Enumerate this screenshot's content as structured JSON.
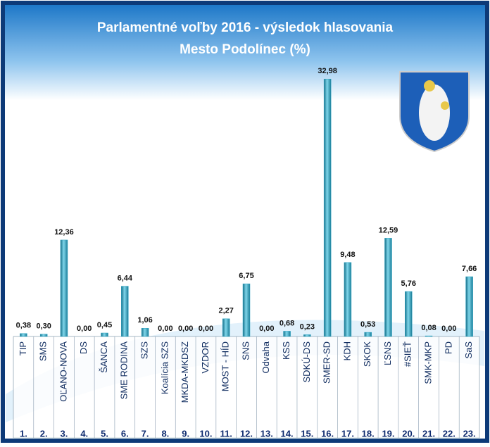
{
  "chart_data": {
    "type": "bar",
    "title": "Parlamentné voľby 2016 - výsledok hlasovania",
    "subtitle": "Mesto Podolínec (%)",
    "categories": [
      "TIP",
      "SMS",
      "OĽANO-NOVA",
      "DS",
      "ŠANCA",
      "SME RODINA",
      "SZS",
      "Koalícia SZS",
      "MKDA-MKDSZ",
      "VZDOR",
      "MOST - HÍD",
      "SNS",
      "Odvaha",
      "KSS",
      "SDKÚ-DS",
      "SMER-SD",
      "KDH",
      "SKOK",
      "ĽSNS",
      "#SIEŤ",
      "SMK-MKP",
      "PD",
      "SaS"
    ],
    "numbers": [
      "1.",
      "2.",
      "3.",
      "4.",
      "5.",
      "6.",
      "7.",
      "8.",
      "9.",
      "10.",
      "11.",
      "12.",
      "13.",
      "14.",
      "15.",
      "16.",
      "17.",
      "18.",
      "19.",
      "20.",
      "21.",
      "22.",
      "23."
    ],
    "values": [
      0.38,
      0.3,
      12.36,
      0.0,
      0.45,
      6.44,
      1.06,
      0.0,
      0.0,
      0.0,
      2.27,
      6.75,
      0.0,
      0.68,
      0.23,
      32.98,
      9.48,
      0.53,
      12.59,
      5.76,
      0.08,
      0.0,
      7.66
    ],
    "value_labels": [
      "0,38",
      "0,30",
      "12,36",
      "0,00",
      "0,45",
      "6,44",
      "1,06",
      "0,00",
      "0,00",
      "0,00",
      "2,27",
      "6,75",
      "0,00",
      "0,68",
      "0,23",
      "32,98",
      "9,48",
      "0,53",
      "12,59",
      "5,76",
      "0,08",
      "0,00",
      "7,66"
    ],
    "color": "#2aa3c2",
    "ylim": [
      0,
      33
    ]
  }
}
